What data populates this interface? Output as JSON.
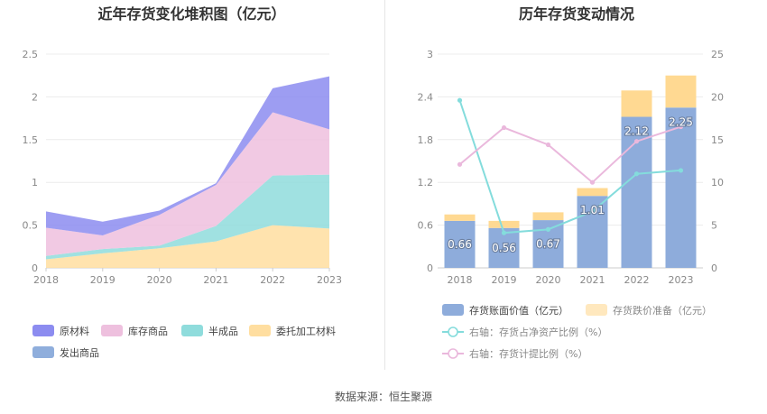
{
  "source": "数据来源：恒生聚源",
  "chart_data": [
    {
      "type": "area",
      "stacked": true,
      "title": "近年存货变化堆积图（亿元）",
      "x": [
        "2018",
        "2019",
        "2020",
        "2021",
        "2022",
        "2023"
      ],
      "ylim": [
        0,
        2.5
      ],
      "yticks": [
        "0",
        "0.5",
        "1",
        "1.5",
        "2",
        "2.5"
      ],
      "grid": true,
      "legend_position": "bottom",
      "series": [
        {
          "name": "委托加工材料",
          "color": "#ffdea0",
          "values": [
            0.1,
            0.17,
            0.23,
            0.31,
            0.5,
            0.46
          ]
        },
        {
          "name": "半成品",
          "color": "#8fdcdc",
          "values": [
            0.04,
            0.05,
            0.03,
            0.18,
            0.58,
            0.63
          ]
        },
        {
          "name": "库存商品",
          "color": "#eec0de",
          "values": [
            0.33,
            0.16,
            0.36,
            0.48,
            0.74,
            0.53
          ]
        },
        {
          "name": "原材料",
          "color": "#8c8cf0",
          "values": [
            0.19,
            0.16,
            0.05,
            0.02,
            0.28,
            0.62
          ]
        },
        {
          "name": "发出商品",
          "color": "#8faedc",
          "values": [
            0.0,
            0.0,
            0.0,
            0.0,
            0.0,
            0.0
          ]
        }
      ],
      "legend_order": [
        "原材料",
        "库存商品",
        "半成品",
        "委托加工材料",
        "发出商品"
      ]
    },
    {
      "type": "bar",
      "title": "历年存货变动情况",
      "categories": [
        "2018",
        "2019",
        "2020",
        "2021",
        "2022",
        "2023"
      ],
      "ylim": [
        0,
        3
      ],
      "yticks": [
        "0",
        "0.6",
        "1.2",
        "1.8",
        "2.4",
        "3"
      ],
      "y2lim": [
        0,
        25
      ],
      "y2ticks": [
        "0",
        "5",
        "10",
        "15",
        "20",
        "25"
      ],
      "legend_position": "bottom",
      "bar_series": [
        {
          "name": "存货账面价值（亿元）",
          "color": "#8eacdb",
          "values": [
            0.66,
            0.56,
            0.67,
            1.01,
            2.12,
            2.25
          ],
          "labels": [
            "0.66",
            "0.56",
            "0.67",
            "1.01",
            "2.12",
            "2.25"
          ]
        },
        {
          "name": "存货跌价准备（亿元）",
          "color": "#ffd992",
          "values": [
            0.09,
            0.1,
            0.11,
            0.11,
            0.37,
            0.45
          ]
        }
      ],
      "line_series": [
        {
          "name": "右轴：存货占净资产比例（%）",
          "color": "#84dcdc",
          "values": [
            19.6,
            4.1,
            4.5,
            6.6,
            11.0,
            11.4
          ]
        },
        {
          "name": "右轴：存货计提比例（%）",
          "color": "#eab8dc",
          "values": [
            12.1,
            16.4,
            14.4,
            10.0,
            14.8,
            16.5
          ]
        }
      ]
    }
  ]
}
